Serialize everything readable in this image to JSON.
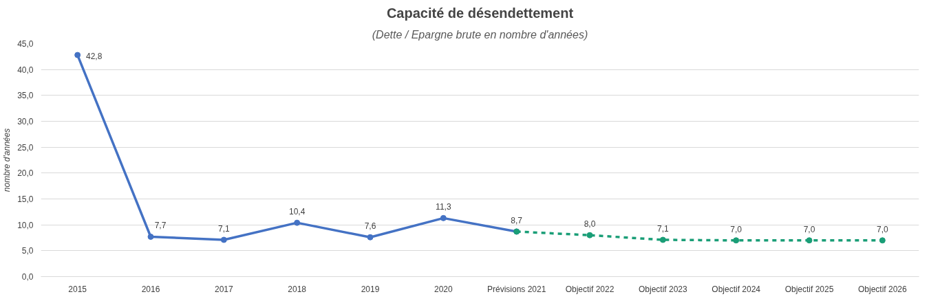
{
  "chart_data": {
    "type": "line",
    "title": "Capacité de désendettement",
    "subtitle": "(Dette / Epargne brute en nombre d'années)",
    "ylabel": "nombre d'années",
    "categories": [
      "2015",
      "2016",
      "2017",
      "2018",
      "2019",
      "2020",
      "Prévisions 2021",
      "Objectif 2022",
      "Objectif 2023",
      "Objectif 2024",
      "Objectif 2025",
      "Objectif 2026"
    ],
    "series": [
      {
        "color": "#4472c4",
        "line_style": "solid",
        "values": [
          42.8,
          7.7,
          7.1,
          10.4,
          7.6,
          11.3,
          8.7,
          null,
          null,
          null,
          null,
          null
        ],
        "value_labels": [
          "42,8",
          "7,7",
          "7,1",
          "10,4",
          "7,6",
          "11,3",
          "8,7",
          null,
          null,
          null,
          null,
          null
        ]
      },
      {
        "color": "#1a9e77",
        "line_style": "dashed",
        "values": [
          null,
          null,
          null,
          null,
          null,
          null,
          8.7,
          8.0,
          7.1,
          7.0,
          7.0,
          7.0
        ],
        "value_labels": [
          null,
          null,
          null,
          null,
          null,
          null,
          null,
          "8,0",
          "7,1",
          "7,0",
          "7,0",
          "7,0"
        ]
      }
    ],
    "ylim": [
      0,
      45
    ],
    "yticks": [
      {
        "value": 0,
        "label": "0,0"
      },
      {
        "value": 5,
        "label": "5,0"
      },
      {
        "value": 10,
        "label": "10,0"
      },
      {
        "value": 15,
        "label": "15,0"
      },
      {
        "value": 20,
        "label": "20,0"
      },
      {
        "value": 25,
        "label": "25,0"
      },
      {
        "value": 30,
        "label": "30,0"
      },
      {
        "value": 35,
        "label": "35,0"
      },
      {
        "value": 40,
        "label": "40,0"
      },
      {
        "value": 45,
        "label": "45,0"
      }
    ],
    "grid": "y",
    "marker": "circle"
  }
}
